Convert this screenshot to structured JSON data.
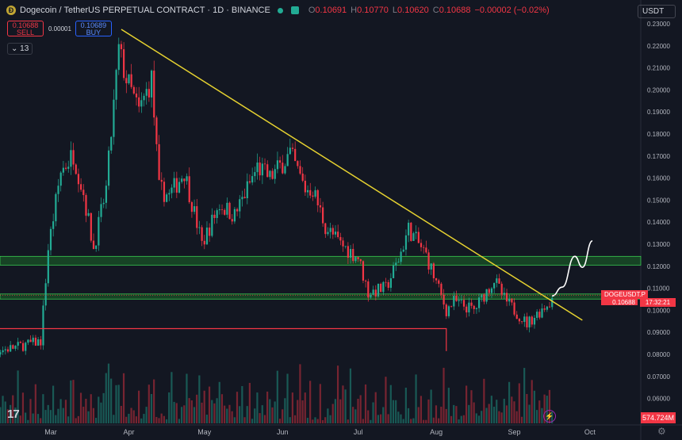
{
  "header": {
    "title": "Dogecoin / TetherUS PERPETUAL CONTRACT · 1D · BINANCE",
    "ohlc": {
      "o_label": "O",
      "o": "0.10691",
      "h_label": "H",
      "h": "0.10770",
      "l_label": "L",
      "l": "0.10620",
      "c_label": "C",
      "c": "0.10688",
      "change": "−0.00002 (−0.02%)"
    }
  },
  "trade": {
    "sell_price": "0.10688",
    "sell_label": "SELL",
    "spread": "0.00001",
    "buy_price": "0.10689",
    "buy_label": "BUY"
  },
  "indicators_count": "13",
  "currency": "USDT",
  "badges": {
    "symbol": "DOGEUSDT.P",
    "price": "0.10688",
    "countdown": "17:32:21",
    "volume": "574.724M"
  },
  "logo_text": "17",
  "colors": {
    "background": "#131722",
    "up": "#22ab94",
    "down": "#f23645",
    "trendline": "#e6d230",
    "support_zone": "#1d7a2a",
    "resistance_line": "#f23645",
    "projection": "#ffffff"
  },
  "icons": {
    "coin": "dogecoin-icon",
    "live": "market-open-dot",
    "alert": "lightning-icon",
    "settings": "gear-icon"
  },
  "chart_data": {
    "type": "candlestick",
    "y_axis": {
      "min": 0.055,
      "max": 0.232,
      "ticks": [
        "0.23000",
        "0.22000",
        "0.21000",
        "0.20000",
        "0.19000",
        "0.18000",
        "0.17000",
        "0.16000",
        "0.15000",
        "0.14000",
        "0.13000",
        "0.12000",
        "0.11000",
        "0.10000",
        "0.09000",
        "0.08000",
        "0.07000",
        "0.06000"
      ]
    },
    "x_axis": {
      "labels": [
        {
          "text": "Mar",
          "date": "2024-03-01"
        },
        {
          "text": "Apr",
          "date": "2024-04-01"
        },
        {
          "text": "May",
          "date": "2024-05-01"
        },
        {
          "text": "Jun",
          "date": "2024-06-01"
        },
        {
          "text": "Jul",
          "date": "2024-07-01"
        },
        {
          "text": "Aug",
          "date": "2024-08-01"
        },
        {
          "text": "Sep",
          "date": "2024-09-01"
        },
        {
          "text": "Oct",
          "date": "2024-10-01"
        }
      ]
    },
    "price_path": [
      {
        "d": "2024-01-29",
        "p": 0.079
      },
      {
        "d": "2024-02-15",
        "p": 0.083
      },
      {
        "d": "2024-02-26",
        "p": 0.086
      },
      {
        "d": "2024-02-29",
        "p": 0.128
      },
      {
        "d": "2024-03-05",
        "p": 0.163
      },
      {
        "d": "2024-03-10",
        "p": 0.171
      },
      {
        "d": "2024-03-14",
        "p": 0.153
      },
      {
        "d": "2024-03-18",
        "p": 0.128
      },
      {
        "d": "2024-03-23",
        "p": 0.155
      },
      {
        "d": "2024-03-28",
        "p": 0.218
      },
      {
        "d": "2024-03-31",
        "p": 0.205
      },
      {
        "d": "2024-04-05",
        "p": 0.19
      },
      {
        "d": "2024-04-10",
        "p": 0.205
      },
      {
        "d": "2024-04-13",
        "p": 0.155
      },
      {
        "d": "2024-04-17",
        "p": 0.152
      },
      {
        "d": "2024-04-23",
        "p": 0.163
      },
      {
        "d": "2024-04-30",
        "p": 0.13
      },
      {
        "d": "2024-05-07",
        "p": 0.148
      },
      {
        "d": "2024-05-13",
        "p": 0.143
      },
      {
        "d": "2024-05-22",
        "p": 0.165
      },
      {
        "d": "2024-05-27",
        "p": 0.16
      },
      {
        "d": "2024-06-04",
        "p": 0.171
      },
      {
        "d": "2024-06-10",
        "p": 0.155
      },
      {
        "d": "2024-06-13",
        "p": 0.155
      },
      {
        "d": "2024-06-18",
        "p": 0.138
      },
      {
        "d": "2024-06-24",
        "p": 0.13
      },
      {
        "d": "2024-07-01",
        "p": 0.124
      },
      {
        "d": "2024-07-05",
        "p": 0.108
      },
      {
        "d": "2024-07-12",
        "p": 0.11
      },
      {
        "d": "2024-07-17",
        "p": 0.123
      },
      {
        "d": "2024-07-21",
        "p": 0.137
      },
      {
        "d": "2024-07-28",
        "p": 0.125
      },
      {
        "d": "2024-08-05",
        "p": 0.1
      },
      {
        "d": "2024-08-08",
        "p": 0.104
      },
      {
        "d": "2024-08-16",
        "p": 0.1
      },
      {
        "d": "2024-08-24",
        "p": 0.114
      },
      {
        "d": "2024-08-28",
        "p": 0.105
      },
      {
        "d": "2024-09-06",
        "p": 0.094
      },
      {
        "d": "2024-09-16",
        "p": 0.105
      }
    ],
    "volume_range": {
      "min": 10,
      "max": 300
    },
    "trendline": {
      "from": {
        "d": "2024-03-29",
        "p": 0.2275
      },
      "to": {
        "d": "2024-09-28",
        "p": 0.0955
      }
    },
    "support_zones": [
      {
        "from": 0.1205,
        "to": 0.1245
      },
      {
        "from": 0.1051,
        "to": 0.1074
      }
    ],
    "resistance_line": {
      "price": 0.0917,
      "from": "2024-02-02",
      "to": "2024-08-05",
      "drop_to": 0.0815
    },
    "projection": [
      {
        "d": "2024-09-16",
        "p": 0.1065
      },
      {
        "d": "2024-09-20",
        "p": 0.1105
      },
      {
        "d": "2024-09-25",
        "p": 0.1245
      },
      {
        "d": "2024-09-28",
        "p": 0.1195
      },
      {
        "d": "2024-10-02",
        "p": 0.1315
      }
    ]
  }
}
